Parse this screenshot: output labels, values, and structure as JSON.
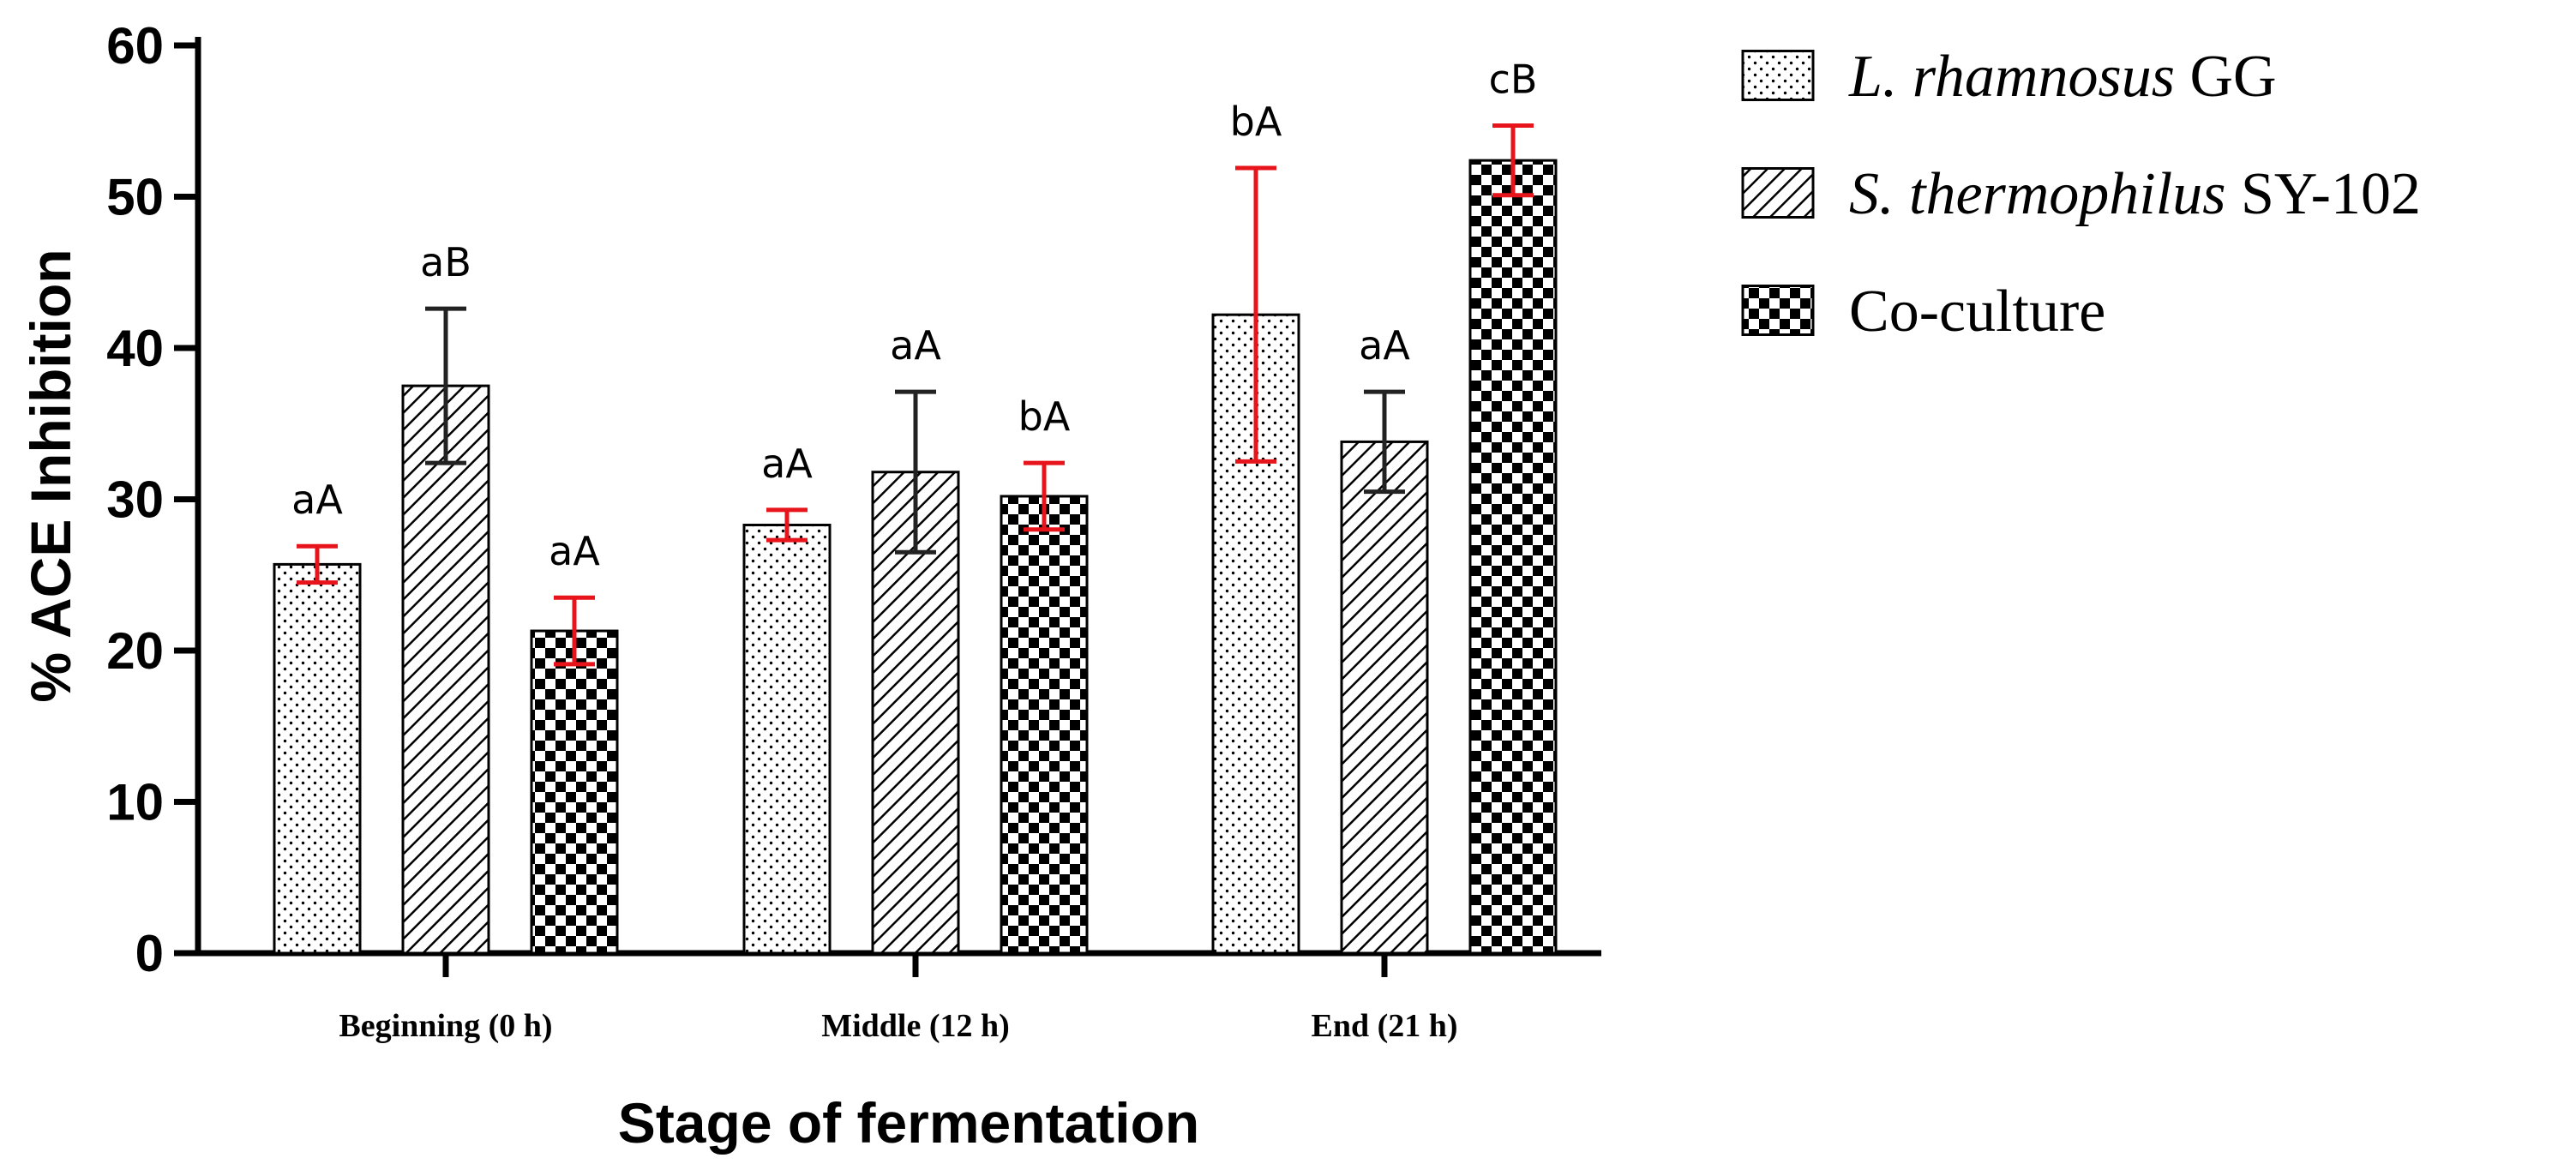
{
  "chart_data": {
    "type": "bar",
    "title": "",
    "xlabel": "Stage of fermentation",
    "ylabel": "% ACE Inhibition",
    "ylim": [
      0,
      60
    ],
    "yticks": [
      "0",
      "10",
      "20",
      "30",
      "40",
      "50",
      "60"
    ],
    "categories": [
      "Beginning (0 h)",
      "Middle (12 h)",
      "End (21 h)"
    ],
    "legend_position": "top-right",
    "grid": false,
    "series": [
      {
        "name": "L. rhamnosus GG",
        "name_parts": [
          {
            "text": "L. rhamnosus",
            "italic": true
          },
          {
            "text": " GG",
            "italic": false
          }
        ],
        "pattern": "dots",
        "error_color": "#e8141b",
        "values": [
          25.7,
          28.3,
          42.2
        ],
        "errors": [
          1.2,
          1.0,
          9.7
        ],
        "labels": [
          "aA",
          "aA",
          "bA"
        ]
      },
      {
        "name": "S. thermophilus SY-102",
        "name_parts": [
          {
            "text": "S. thermophilus",
            "italic": true
          },
          {
            "text": " SY-102",
            "italic": false
          }
        ],
        "pattern": "diagonal-lines",
        "error_color": "#222222",
        "values": [
          37.5,
          31.8,
          33.8
        ],
        "errors": [
          5.1,
          5.3,
          3.3
        ],
        "labels": [
          "aB",
          "aA",
          "aA"
        ]
      },
      {
        "name": "Co-culture",
        "name_parts": [
          {
            "text": "Co-culture",
            "italic": false
          }
        ],
        "pattern": "checkerboard",
        "error_color": "#e8141b",
        "values": [
          21.3,
          30.2,
          52.4
        ],
        "errors": [
          2.2,
          2.2,
          2.3
        ],
        "labels": [
          "aA",
          "bA",
          "cB"
        ]
      }
    ]
  }
}
